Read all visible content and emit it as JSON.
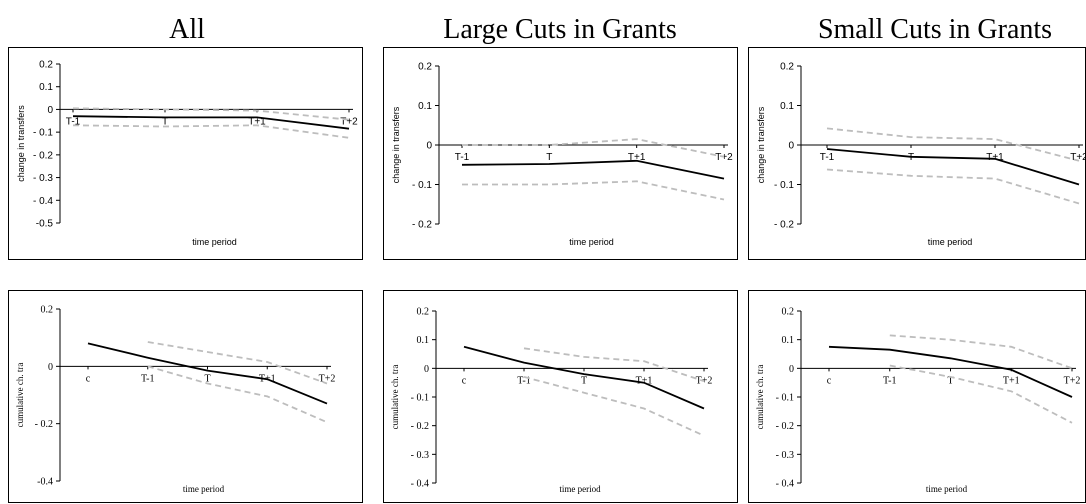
{
  "column_titles": [
    "All",
    "Large Cuts in Grants",
    "Small Cuts in Grants"
  ],
  "colors": {
    "main": "#000000",
    "band": "#bdbdbd",
    "frame": "#000000"
  },
  "chart_data": [
    {
      "type": "line",
      "title": "All",
      "categories": [
        "T-1",
        "T",
        "T+1",
        "T+2"
      ],
      "xlabel": "time period",
      "ylabel": "change in transfers",
      "ylim": [
        -0.5,
        0.2
      ],
      "yticks": [
        "0.2",
        "0.1",
        "0",
        "- 0.1",
        "- 0.2",
        "- 0.3",
        "- 0.4",
        "-0.5"
      ],
      "grid": false,
      "series": [
        {
          "style": "solid",
          "values": [
            -0.03,
            -0.035,
            -0.035,
            -0.085
          ]
        },
        {
          "style": "dashed",
          "values": [
            0.005,
            0.0,
            -0.005,
            -0.045
          ]
        },
        {
          "style": "dashed",
          "values": [
            -0.07,
            -0.075,
            -0.07,
            -0.125
          ]
        }
      ]
    },
    {
      "type": "line",
      "title": "Large Cuts in Grants",
      "categories": [
        "T-1",
        "T",
        "T+1",
        "T+2"
      ],
      "xlabel": "time period",
      "ylabel": "change in transfers",
      "ylim": [
        -0.2,
        0.2
      ],
      "yticks": [
        "0.2",
        "0.1",
        "0",
        "- 0.1",
        "- 0.2"
      ],
      "grid": false,
      "series": [
        {
          "style": "solid",
          "values": [
            -0.05,
            -0.048,
            -0.04,
            -0.085
          ]
        },
        {
          "style": "dashed",
          "values": [
            0.0,
            0.0,
            0.015,
            -0.03
          ]
        },
        {
          "style": "dashed",
          "values": [
            -0.1,
            -0.1,
            -0.092,
            -0.138
          ]
        }
      ]
    },
    {
      "type": "line",
      "title": "Small Cuts in Grants",
      "categories": [
        "T-1",
        "T",
        "T+1",
        "T+2"
      ],
      "xlabel": "time period",
      "ylabel": "change in transfers",
      "ylim": [
        -0.2,
        0.2
      ],
      "yticks": [
        "0.2",
        "0.1",
        "0",
        "- 0.1",
        "- 0.2"
      ],
      "grid": false,
      "series": [
        {
          "style": "solid",
          "values": [
            -0.01,
            -0.03,
            -0.035,
            -0.1
          ]
        },
        {
          "style": "dashed",
          "values": [
            0.042,
            0.02,
            0.015,
            -0.04
          ]
        },
        {
          "style": "dashed",
          "values": [
            -0.062,
            -0.078,
            -0.085,
            -0.148
          ]
        }
      ]
    },
    {
      "type": "line",
      "title": "",
      "categories": [
        "c",
        "T-1",
        "T",
        "T+1",
        "T+2"
      ],
      "xlabel": "time period",
      "ylabel": "cumulative ch. tra",
      "ylim": [
        -0.4,
        0.2
      ],
      "yticks": [
        "0.2",
        "0",
        "- 0.2",
        "-0.4"
      ],
      "grid": false,
      "series": [
        {
          "style": "solid",
          "values": [
            0.08,
            0.03,
            -0.015,
            -0.045,
            -0.13
          ]
        },
        {
          "style": "dashed",
          "values": [
            null,
            0.085,
            0.05,
            0.015,
            -0.06
          ]
        },
        {
          "style": "dashed",
          "values": [
            null,
            0.0,
            -0.06,
            -0.105,
            -0.195
          ]
        }
      ]
    },
    {
      "type": "line",
      "title": "",
      "categories": [
        "c",
        "T-1",
        "T",
        "T+1",
        "T+2"
      ],
      "xlabel": "time period",
      "ylabel": "cumulative ch. tra",
      "ylim": [
        -0.4,
        0.2
      ],
      "yticks": [
        "0.2",
        "0.1",
        "0",
        "- 0.1",
        "- 0.2",
        "- 0.3",
        "- 0.4"
      ],
      "grid": false,
      "series": [
        {
          "style": "solid",
          "values": [
            0.075,
            0.02,
            -0.02,
            -0.05,
            -0.14
          ]
        },
        {
          "style": "dashed",
          "values": [
            null,
            0.07,
            0.04,
            0.025,
            -0.045
          ]
        },
        {
          "style": "dashed",
          "values": [
            null,
            -0.03,
            -0.085,
            -0.14,
            -0.235
          ]
        }
      ]
    },
    {
      "type": "line",
      "title": "",
      "categories": [
        "c",
        "T-1",
        "T",
        "T+1",
        "T+2"
      ],
      "xlabel": "time period",
      "ylabel": "cumulative ch. tra",
      "ylim": [
        -0.4,
        0.2
      ],
      "yticks": [
        "0.2",
        "0.1",
        "0",
        "- 0.1",
        "- 0.2",
        "- 0.3",
        "- 0.4"
      ],
      "grid": false,
      "series": [
        {
          "style": "solid",
          "values": [
            0.075,
            0.065,
            0.035,
            -0.005,
            -0.1
          ]
        },
        {
          "style": "dashed",
          "values": [
            null,
            0.115,
            0.1,
            0.075,
            0.0
          ]
        },
        {
          "style": "dashed",
          "values": [
            null,
            0.01,
            -0.03,
            -0.08,
            -0.19
          ]
        }
      ]
    }
  ]
}
